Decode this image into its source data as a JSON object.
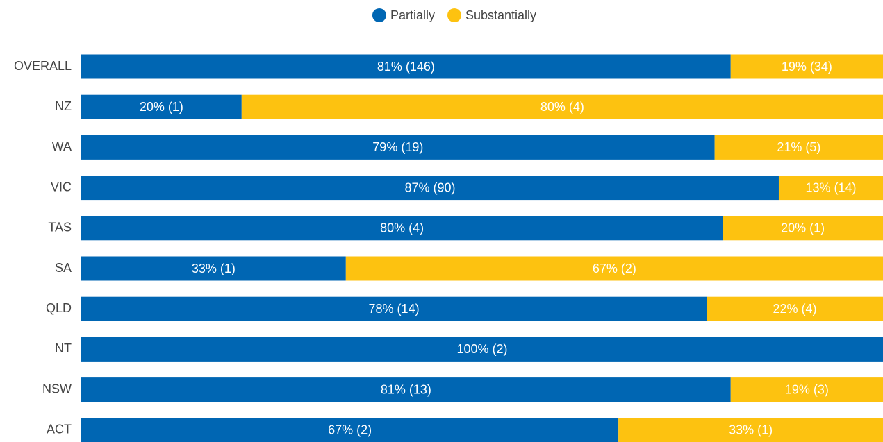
{
  "chart_data": {
    "type": "bar",
    "orientation": "horizontal",
    "stacked": true,
    "categories": [
      "OVERALL",
      "NZ",
      "WA",
      "VIC",
      "TAS",
      "SA",
      "QLD",
      "NT",
      "NSW",
      "ACT"
    ],
    "series": [
      {
        "name": "Partially",
        "color": "#0066b3",
        "values": [
          81,
          20,
          79,
          87,
          80,
          33,
          78,
          100,
          81,
          67
        ],
        "value_labels": [
          "81% (146)",
          "20% (1)",
          "79% (19)",
          "87% (90)",
          "80% (4)",
          "33% (1)",
          "78% (14)",
          "100% (2)",
          "81% (13)",
          "67% (2)"
        ]
      },
      {
        "name": "Substantially",
        "color": "#fdc210",
        "values": [
          19,
          80,
          21,
          13,
          20,
          67,
          22,
          0,
          19,
          33
        ],
        "value_labels": [
          "19% (34)",
          "80% (4)",
          "21% (5)",
          "13% (14)",
          "20% (1)",
          "67% (2)",
          "22% (4)",
          null,
          "19% (3)",
          "33% (1)"
        ]
      }
    ],
    "legend": "top"
  }
}
